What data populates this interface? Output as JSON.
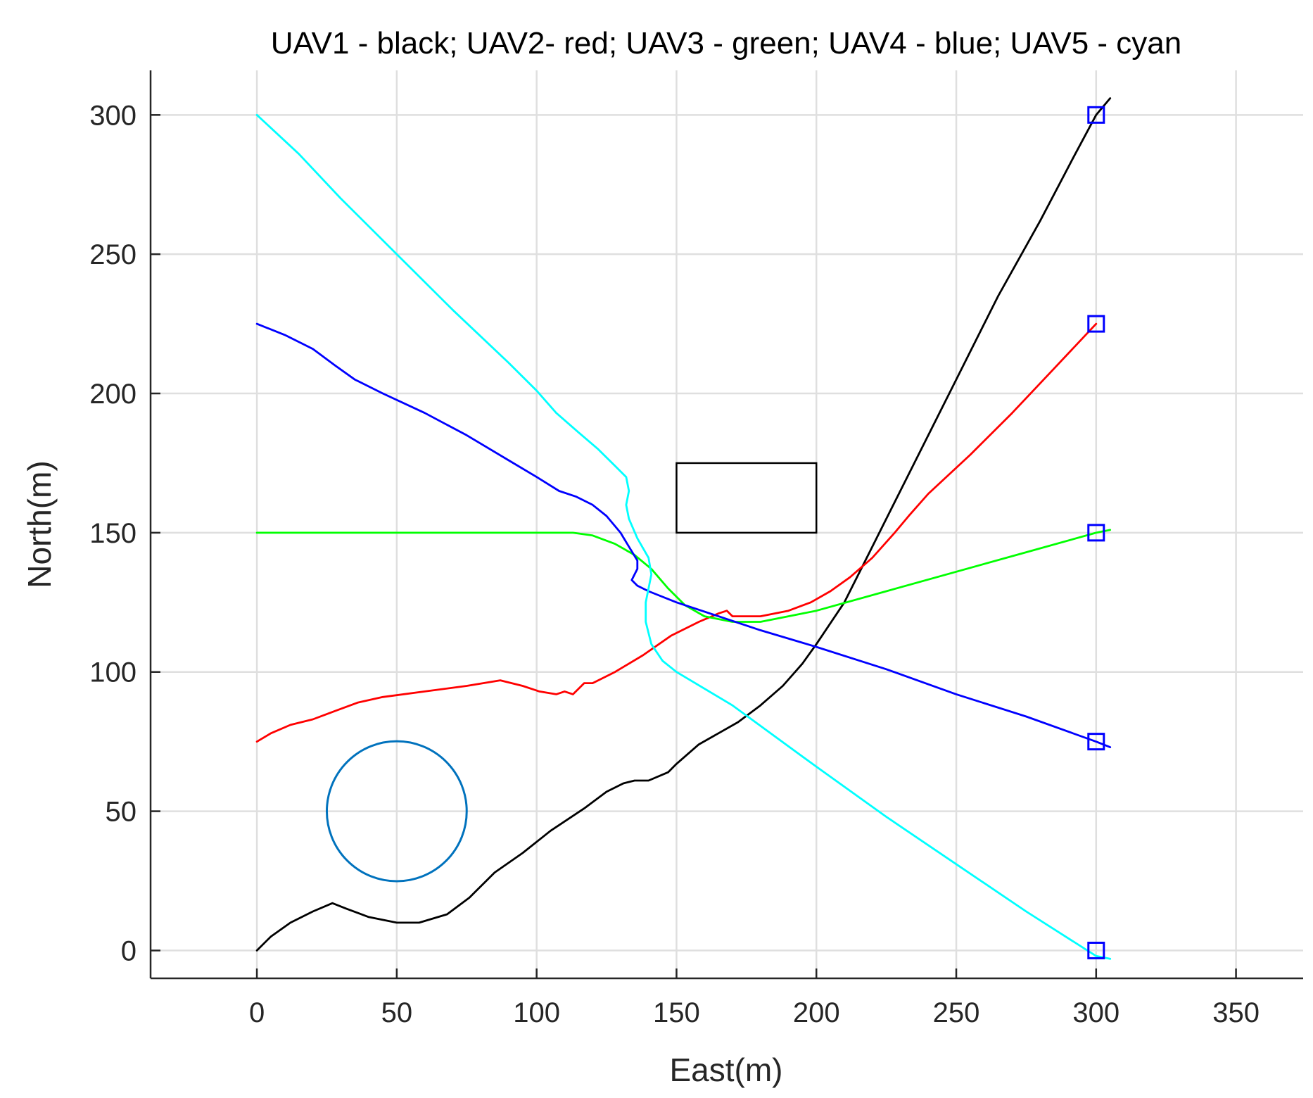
{
  "chart_data": {
    "type": "line",
    "title": "UAV1 - black; UAV2- red; UAV3 - green; UAV4 - blue; UAV5 - cyan",
    "xlabel": "East(m)",
    "ylabel": "North(m)",
    "xlim": [
      -38,
      374
    ],
    "ylim": [
      -10,
      316
    ],
    "xticks": [
      0,
      50,
      100,
      150,
      200,
      250,
      300,
      350
    ],
    "yticks": [
      0,
      50,
      100,
      150,
      200,
      250,
      300
    ],
    "grid": true,
    "legend": "none",
    "series": [
      {
        "color": "#000000",
        "points": [
          [
            0,
            0
          ],
          [
            5,
            5
          ],
          [
            12,
            10
          ],
          [
            20,
            14
          ],
          [
            27,
            17
          ],
          [
            32,
            15
          ],
          [
            40,
            12
          ],
          [
            50,
            10
          ],
          [
            58,
            10
          ],
          [
            68,
            13
          ],
          [
            76,
            19
          ],
          [
            85,
            28
          ],
          [
            95,
            35
          ],
          [
            105,
            43
          ],
          [
            117,
            51
          ],
          [
            125,
            57
          ],
          [
            131,
            60
          ],
          [
            135,
            61
          ],
          [
            140,
            61
          ],
          [
            147,
            64
          ],
          [
            150,
            67
          ],
          [
            158,
            74
          ],
          [
            165,
            78
          ],
          [
            172,
            82
          ],
          [
            180,
            88
          ],
          [
            188,
            95
          ],
          [
            195,
            103
          ],
          [
            200,
            110
          ],
          [
            210,
            125
          ],
          [
            220,
            145
          ],
          [
            235,
            175
          ],
          [
            250,
            205
          ],
          [
            265,
            235
          ],
          [
            280,
            262
          ],
          [
            292,
            285
          ],
          [
            300,
            300
          ],
          [
            305,
            306
          ]
        ]
      },
      {
        "color": "#ff0000",
        "points": [
          [
            0,
            75
          ],
          [
            5,
            78
          ],
          [
            12,
            81
          ],
          [
            20,
            83
          ],
          [
            28,
            86
          ],
          [
            36,
            89
          ],
          [
            45,
            91
          ],
          [
            60,
            93
          ],
          [
            75,
            95
          ],
          [
            87,
            97
          ],
          [
            95,
            95
          ],
          [
            101,
            93
          ],
          [
            107,
            92
          ],
          [
            110,
            93
          ],
          [
            113,
            92
          ],
          [
            115,
            94
          ],
          [
            117,
            96
          ],
          [
            120,
            96
          ],
          [
            128,
            100
          ],
          [
            138,
            106
          ],
          [
            148,
            113
          ],
          [
            158,
            118
          ],
          [
            165,
            121
          ],
          [
            168,
            122
          ],
          [
            170,
            120
          ],
          [
            180,
            120
          ],
          [
            190,
            122
          ],
          [
            198,
            125
          ],
          [
            205,
            129
          ],
          [
            212,
            134
          ],
          [
            220,
            141
          ],
          [
            228,
            150
          ],
          [
            233,
            156
          ],
          [
            240,
            164
          ],
          [
            255,
            178
          ],
          [
            270,
            193
          ],
          [
            285,
            209
          ],
          [
            300,
            225
          ]
        ]
      },
      {
        "color": "#00ff00",
        "points": [
          [
            0,
            150
          ],
          [
            50,
            150
          ],
          [
            100,
            150
          ],
          [
            113,
            150
          ],
          [
            120,
            149
          ],
          [
            128,
            146
          ],
          [
            135,
            142
          ],
          [
            141,
            137
          ],
          [
            147,
            130
          ],
          [
            153,
            124
          ],
          [
            160,
            120
          ],
          [
            170,
            118
          ],
          [
            180,
            118
          ],
          [
            190,
            120
          ],
          [
            200,
            122
          ],
          [
            225,
            129
          ],
          [
            250,
            136
          ],
          [
            275,
            143
          ],
          [
            300,
            150
          ],
          [
            305,
            151
          ]
        ]
      },
      {
        "color": "#0000ff",
        "points": [
          [
            0,
            225
          ],
          [
            10,
            221
          ],
          [
            20,
            216
          ],
          [
            28,
            210
          ],
          [
            35,
            205
          ],
          [
            45,
            200
          ],
          [
            60,
            193
          ],
          [
            75,
            185
          ],
          [
            90,
            176
          ],
          [
            100,
            170
          ],
          [
            108,
            165
          ],
          [
            114,
            163
          ],
          [
            120,
            160
          ],
          [
            125,
            156
          ],
          [
            130,
            150
          ],
          [
            133,
            145
          ],
          [
            136,
            140
          ],
          [
            136,
            137
          ],
          [
            134,
            133
          ],
          [
            136,
            131
          ],
          [
            140,
            129
          ],
          [
            150,
            125
          ],
          [
            165,
            120
          ],
          [
            180,
            115
          ],
          [
            200,
            109
          ],
          [
            225,
            101
          ],
          [
            250,
            92
          ],
          [
            275,
            84
          ],
          [
            300,
            75
          ],
          [
            305,
            73
          ]
        ]
      },
      {
        "color": "#00ffff",
        "points": [
          [
            0,
            300
          ],
          [
            15,
            286
          ],
          [
            30,
            270
          ],
          [
            50,
            250
          ],
          [
            70,
            230
          ],
          [
            90,
            211
          ],
          [
            100,
            201
          ],
          [
            107,
            193
          ],
          [
            115,
            186
          ],
          [
            122,
            180
          ],
          [
            128,
            174
          ],
          [
            132,
            170
          ],
          [
            133,
            165
          ],
          [
            132,
            160
          ],
          [
            133,
            155
          ],
          [
            136,
            148
          ],
          [
            140,
            141
          ],
          [
            141,
            135
          ],
          [
            140,
            130
          ],
          [
            139,
            125
          ],
          [
            139,
            118
          ],
          [
            141,
            110
          ],
          [
            145,
            104
          ],
          [
            150,
            100
          ],
          [
            170,
            88
          ],
          [
            200,
            66
          ],
          [
            225,
            48
          ],
          [
            250,
            31
          ],
          [
            275,
            14
          ],
          [
            300,
            -2
          ],
          [
            305,
            -3
          ]
        ]
      }
    ],
    "markers": [
      {
        "shape": "square",
        "color": "#0000ff",
        "points": [
          [
            300,
            300
          ],
          [
            300,
            225
          ],
          [
            300,
            150
          ],
          [
            300,
            75
          ],
          [
            300,
            0
          ]
        ]
      }
    ],
    "obstacles": [
      {
        "shape": "rectangle",
        "color": "#000000",
        "x": [
          150,
          200
        ],
        "y": [
          150,
          175
        ]
      },
      {
        "shape": "circle",
        "color": "#0072bd",
        "center": [
          50,
          50
        ],
        "radius": 25
      }
    ]
  }
}
